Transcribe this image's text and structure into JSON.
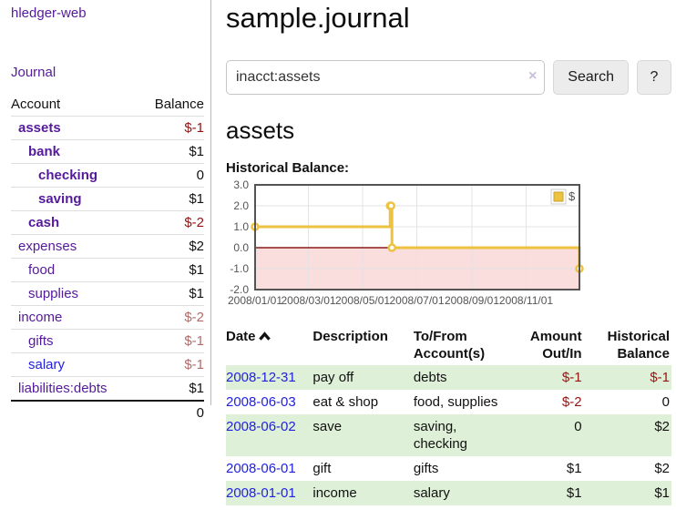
{
  "app": {
    "brand": "hledger-web"
  },
  "colors": {
    "link_purple": "#551a9b",
    "link_blue": "#2222dd",
    "negative_strong": "#941414",
    "negative_muted": "#b26b6b",
    "row_stripe_green": "#dff0d8",
    "chart_line": "#edc240",
    "chart_negative_fill": "#fadddd",
    "chart_zero_line": "#8b1a1a"
  },
  "sidebar": {
    "journal_link": "Journal",
    "accounts_table": {
      "account_header": "Account",
      "balance_header": "Balance",
      "rows": [
        {
          "name": "assets",
          "balance": "$-1"
        },
        {
          "name": "bank",
          "balance": "$1"
        },
        {
          "name": "checking",
          "balance": "0"
        },
        {
          "name": "saving",
          "balance": "$1"
        },
        {
          "name": "cash",
          "balance": "$-2"
        },
        {
          "name": "expenses",
          "balance": "$2"
        },
        {
          "name": "food",
          "balance": "$1"
        },
        {
          "name": "supplies",
          "balance": "$1"
        },
        {
          "name": "income",
          "balance": "$-2"
        },
        {
          "name": "gifts",
          "balance": "$-1"
        },
        {
          "name": "salary",
          "balance": "$-1"
        },
        {
          "name": "liabilities:debts",
          "balance": "$1"
        }
      ],
      "total": "0"
    }
  },
  "main": {
    "title": "sample.journal",
    "search": {
      "value": "inacct:assets",
      "clear_icon": "×",
      "button_label": "Search",
      "help_label": "?"
    },
    "account_heading": "assets"
  },
  "chart_data": {
    "type": "line",
    "style": "step",
    "title": "Historical Balance:",
    "series": [
      {
        "name": "$",
        "color": "#edc240",
        "points": [
          {
            "date": "2008-01-01",
            "day": 0,
            "value": 1
          },
          {
            "date": "2008-06-01",
            "day": 152,
            "value": 2
          },
          {
            "date": "2008-06-02",
            "day": 153,
            "value": 2
          },
          {
            "date": "2008-06-03",
            "day": 154,
            "value": 0
          },
          {
            "date": "2008-12-31",
            "day": 365,
            "value": -1
          }
        ]
      }
    ],
    "x_ticks": [
      {
        "day": 0,
        "label": "2008/01/01"
      },
      {
        "day": 60,
        "label": "2008/03/01"
      },
      {
        "day": 121,
        "label": "2008/05/01"
      },
      {
        "day": 182,
        "label": "2008/07/01"
      },
      {
        "day": 244,
        "label": "2008/09/01"
      },
      {
        "day": 305,
        "label": "2008/11/01"
      }
    ],
    "y_ticks": [
      {
        "value": 3,
        "label": "3.0"
      },
      {
        "value": 2,
        "label": "2.0"
      },
      {
        "value": 1,
        "label": "1.0"
      },
      {
        "value": 0,
        "label": "0.0"
      },
      {
        "value": -1,
        "label": "-1.0"
      },
      {
        "value": -2,
        "label": "-2.0"
      }
    ],
    "ylim": [
      -2,
      3
    ],
    "xlim_days": [
      0,
      365
    ],
    "grid": true,
    "legend_position": "top-right",
    "negative_region_fill": "#fadddd",
    "zero_line_color": "#8b1a1a",
    "grid_color": "#e3e3e3",
    "border_color": "#545454"
  },
  "register": {
    "headers": {
      "date": "Date",
      "description": "Description",
      "accounts": "To/From Account(s)",
      "amount": "Amount Out/In",
      "balance": "Historical Balance"
    },
    "sort_indicator": "up",
    "rows": [
      {
        "date": "2008-12-31",
        "description": "pay off",
        "accounts": "debts",
        "amount": "$-1",
        "balance": "$-1"
      },
      {
        "date": "2008-06-03",
        "description": "eat & shop",
        "accounts": "food, supplies",
        "amount": "$-2",
        "balance": "0"
      },
      {
        "date": "2008-06-02",
        "description": "save",
        "accounts": "saving, checking",
        "amount": "0",
        "balance": "$2"
      },
      {
        "date": "2008-06-01",
        "description": "gift",
        "accounts": "gifts",
        "amount": "$1",
        "balance": "$2"
      },
      {
        "date": "2008-01-01",
        "description": "income",
        "accounts": "salary",
        "amount": "$1",
        "balance": "$1"
      }
    ]
  }
}
